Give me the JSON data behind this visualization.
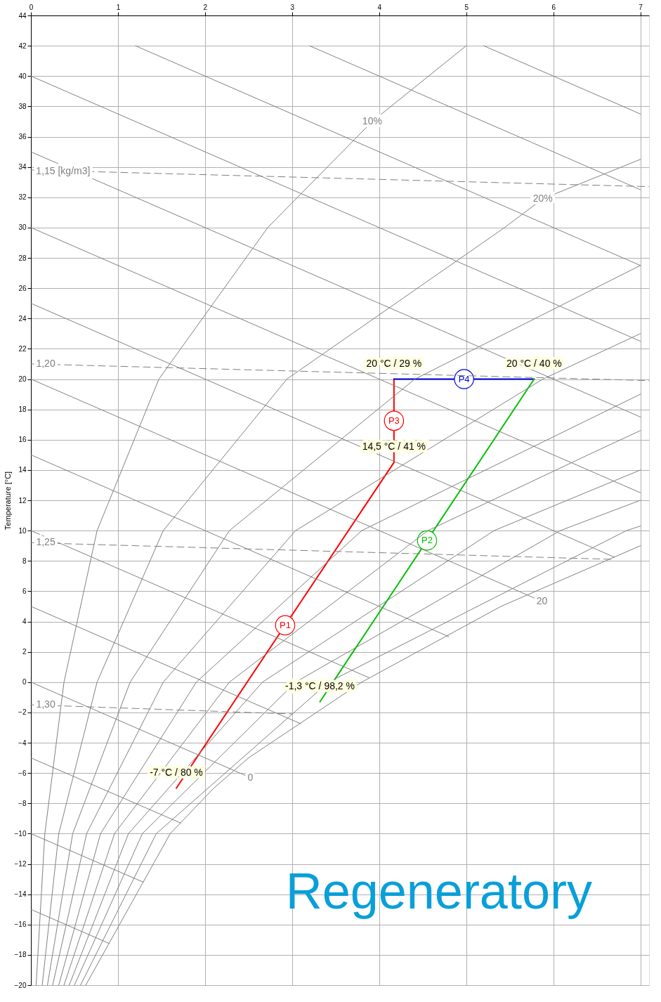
{
  "chart_data": {
    "type": "line",
    "ylabel": "Temperature [°C]",
    "xlim": [
      0,
      7.1
    ],
    "ylim": [
      -20,
      44
    ],
    "xticks": [
      0,
      1,
      2,
      3,
      4,
      5,
      6,
      7
    ],
    "yticks": [
      -20,
      -18,
      -16,
      -14,
      -12,
      -10,
      -8,
      -6,
      -4,
      -2,
      0,
      2,
      4,
      6,
      8,
      10,
      12,
      14,
      16,
      18,
      20,
      22,
      24,
      26,
      28,
      30,
      32,
      34,
      36,
      38,
      40,
      42,
      44
    ],
    "grid": true,
    "series": [
      {
        "name": "P1",
        "color": "#ff0000",
        "x": [
          1.67,
          4.17
        ],
        "values": [
          -7,
          14.5
        ]
      },
      {
        "name": "P3",
        "color": "#ff0000",
        "x": [
          4.17,
          4.17
        ],
        "values": [
          14.5,
          20
        ]
      },
      {
        "name": "P4",
        "color": "#0000e0",
        "x": [
          4.17,
          5.78
        ],
        "values": [
          20,
          20
        ]
      },
      {
        "name": "P2",
        "color": "#00c000",
        "x": [
          3.32,
          5.78
        ],
        "values": [
          -1.3,
          20
        ]
      },
      {
        "color": "#808080",
        "x": [
          0.63,
          1.6,
          2.1,
          2.5,
          3.8,
          5.4,
          7.0
        ],
        "values": [
          -20,
          -10,
          -7,
          -5,
          0,
          5,
          9
        ]
      },
      {
        "color": "#808080",
        "x": [
          0.06,
          0.16,
          0.38,
          0.76,
          1.47,
          2.72,
          3.92,
          5.0
        ],
        "values": [
          -20,
          -10,
          0,
          10,
          20,
          30,
          37,
          42
        ]
      },
      {
        "color": "#808080",
        "x": [
          0.13,
          0.32,
          0.76,
          1.52,
          2.94,
          5.44,
          5.88,
          7.0
        ],
        "values": [
          -20,
          -10,
          0,
          10,
          20,
          30,
          31.9,
          34.5
        ]
      },
      {
        "color": "#808080",
        "x": [
          0.19,
          0.48,
          1.14,
          2.28,
          4.41,
          7.0
        ],
        "values": [
          -20,
          -10,
          0,
          10,
          20,
          27.5
        ]
      },
      {
        "color": "#808080",
        "x": [
          0.25,
          0.64,
          1.52,
          3.04,
          5.88,
          7.0
        ],
        "values": [
          -20,
          -10,
          0,
          10,
          20,
          23
        ]
      },
      {
        "color": "#808080",
        "x": [
          0.32,
          0.8,
          1.9,
          3.8,
          7.0
        ],
        "values": [
          -20,
          -10,
          0,
          10,
          19
        ]
      },
      {
        "color": "#808080",
        "x": [
          0.38,
          0.96,
          2.28,
          4.56,
          6.4,
          7.0
        ],
        "values": [
          -20,
          -10,
          0,
          10,
          15,
          16.6
        ]
      },
      {
        "color": "#808080",
        "x": [
          0.44,
          1.12,
          2.66,
          5.32,
          7.0
        ],
        "values": [
          -20,
          -10,
          0,
          10,
          14
        ]
      },
      {
        "color": "#808080",
        "x": [
          0.5,
          1.28,
          3.04,
          6.08,
          7.0
        ],
        "values": [
          -20,
          -10,
          0,
          10,
          12
        ]
      },
      {
        "color": "#808080",
        "x": [
          0.57,
          1.44,
          3.42,
          6.84,
          7.0
        ],
        "values": [
          -20,
          -10,
          0,
          10,
          10.3
        ]
      },
      {
        "color": "#808080",
        "x": [
          5.2,
          7.0
        ],
        "values": [
          42,
          37.5
        ]
      },
      {
        "color": "#808080",
        "x": [
          3.2,
          7.0
        ],
        "values": [
          42,
          32.5
        ]
      },
      {
        "color": "#808080",
        "x": [
          1.2,
          7.0
        ],
        "values": [
          42,
          27.5
        ]
      },
      {
        "color": "#808080",
        "x": [
          0,
          7.0
        ],
        "values": [
          40,
          22.5
        ]
      },
      {
        "color": "#808080",
        "x": [
          0,
          7.0
        ],
        "values": [
          35,
          17.5
        ]
      },
      {
        "color": "#808080",
        "x": [
          0,
          7.0
        ],
        "values": [
          30,
          12.5
        ]
      },
      {
        "color": "#808080",
        "x": [
          0,
          6.7
        ],
        "values": [
          25,
          8.25
        ]
      },
      {
        "color": "#808080",
        "x": [
          0,
          5.87
        ],
        "values": [
          20,
          5.33
        ]
      },
      {
        "color": "#808080",
        "x": [
          0,
          4.8
        ],
        "values": [
          15,
          3.0
        ]
      },
      {
        "color": "#808080",
        "x": [
          0,
          3.88
        ],
        "values": [
          10,
          0.3
        ]
      },
      {
        "color": "#808080",
        "x": [
          0,
          3.1
        ],
        "values": [
          5,
          -2.75
        ]
      },
      {
        "color": "#808080",
        "x": [
          0,
          2.52
        ],
        "values": [
          0,
          -6.3
        ]
      },
      {
        "color": "#808080",
        "x": [
          0,
          1.72
        ],
        "values": [
          -5,
          -9.3
        ]
      },
      {
        "color": "#808080",
        "x": [
          0,
          1.29
        ],
        "values": [
          -10,
          -13.2
        ]
      },
      {
        "color": "#808080",
        "x": [
          0,
          0.9
        ],
        "values": [
          -15,
          -17.25
        ]
      },
      {
        "color": "#808080",
        "line_style": "dashed",
        "x": [
          0,
          7.1
        ],
        "values": [
          33.8,
          32.7
        ]
      },
      {
        "color": "#808080",
        "line_style": "dashed",
        "x": [
          0,
          7.1
        ],
        "values": [
          21.0,
          19.9
        ]
      },
      {
        "color": "#808080",
        "line_style": "dashed",
        "x": [
          0,
          6.7
        ],
        "values": [
          9.2,
          8.1
        ]
      },
      {
        "color": "#808080",
        "line_style": "dashed",
        "x": [
          0,
          3.0
        ],
        "values": [
          -1.5,
          -2.1
        ]
      }
    ],
    "annotations": [
      {
        "text": "20 °C / 29 %",
        "x": 4.17,
        "y": 20
      },
      {
        "text": "20 °C / 40 %",
        "x": 5.78,
        "y": 20
      },
      {
        "text": "14,5 °C / 41 %",
        "x": 4.17,
        "y": 14.5
      },
      {
        "text": "-1,3 °C / 98,2 %",
        "x": 3.32,
        "y": -1.3
      },
      {
        "text": "-7 °C / 80 %",
        "x": 1.67,
        "y": -7
      },
      {
        "text": "10%",
        "x": 3.92,
        "y": 37
      },
      {
        "text": "20%",
        "x": 5.88,
        "y": 31.9
      },
      {
        "text": "1,15 [kg/m3]",
        "x": 0.37,
        "y": 33.7
      },
      {
        "text": "1,20",
        "x": 0.17,
        "y": 21
      },
      {
        "text": "1,25",
        "x": 0.17,
        "y": 9.2
      },
      {
        "text": "1,30",
        "x": 0.17,
        "y": -1.5
      },
      {
        "text": "20",
        "x": 5.87,
        "y": 5.33
      },
      {
        "text": "0",
        "x": 2.52,
        "y": -6.3
      },
      "Regeneratory"
    ]
  }
}
